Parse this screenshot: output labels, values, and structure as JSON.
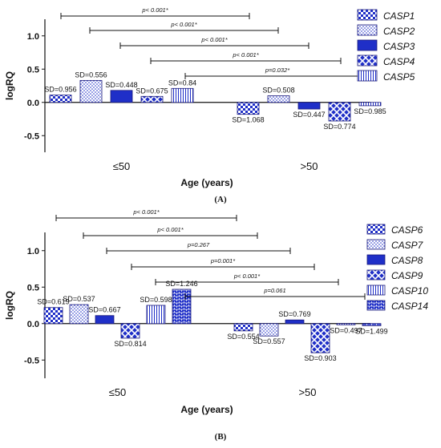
{
  "colors": {
    "fill": "#1f2fc8",
    "stroke": "#1a1a7a",
    "light": "#ffffff"
  },
  "chart_data": [
    {
      "type": "bar",
      "panel_label": "(A)",
      "xlabel": "Age (years)",
      "ylabel": "logRQ",
      "ylim": [
        -0.75,
        1.25
      ],
      "yticks": [
        -0.5,
        0.0,
        0.5,
        1.0
      ],
      "ytick_labels": [
        "-0.5",
        "0.0",
        "0.5",
        "1.0"
      ],
      "categories": [
        "≤50",
        ">50"
      ],
      "series": [
        {
          "name": "CASP1",
          "pattern": "checker",
          "values": [
            0.11,
            -0.18
          ],
          "sd_labels": [
            "SD=0.956",
            "SD=1.068"
          ]
        },
        {
          "name": "CASP2",
          "pattern": "dots",
          "values": [
            0.33,
            0.1
          ],
          "sd_labels": [
            "SD=0.556",
            "SD=0.508"
          ]
        },
        {
          "name": "CASP3",
          "pattern": "solid",
          "values": [
            0.18,
            -0.1
          ],
          "sd_labels": [
            "SD=0.448",
            "SD=0.447"
          ]
        },
        {
          "name": "CASP4",
          "pattern": "crosshatch",
          "values": [
            0.09,
            -0.28
          ],
          "sd_labels": [
            "SD=0.675",
            "SD=0.774"
          ]
        },
        {
          "name": "CASP5",
          "pattern": "vlines",
          "values": [
            0.21,
            -0.05
          ],
          "sd_labels": [
            "SD=0.84",
            "SD=0.985"
          ]
        }
      ],
      "comparisons": [
        {
          "label": "p< 0.001*"
        },
        {
          "label": "p< 0.001*"
        },
        {
          "label": "p< 0.001*"
        },
        {
          "label": "p< 0.001*"
        },
        {
          "label": "p=0.032*"
        }
      ]
    },
    {
      "type": "bar",
      "panel_label": "(B)",
      "xlabel": "Age (years)",
      "ylabel": "logRQ",
      "ylim": [
        -0.75,
        1.25
      ],
      "yticks": [
        -0.5,
        0.0,
        0.5,
        1.0
      ],
      "ytick_labels": [
        "-0.5",
        "0.0",
        "0.5",
        "1.0"
      ],
      "categories": [
        "≤50",
        ">50"
      ],
      "series": [
        {
          "name": "CASP6",
          "pattern": "checker",
          "values": [
            0.22,
            -0.1
          ],
          "sd_labels": [
            "SD=0.619",
            "SD=0.554"
          ]
        },
        {
          "name": "CASP7",
          "pattern": "dots",
          "values": [
            0.26,
            -0.17
          ],
          "sd_labels": [
            "SD=0.537",
            "SD=0.557"
          ]
        },
        {
          "name": "CASP8",
          "pattern": "solid",
          "values": [
            0.11,
            0.05
          ],
          "sd_labels": [
            "SD=0.667",
            "SD=0.769"
          ]
        },
        {
          "name": "CASP9",
          "pattern": "crosshatch",
          "values": [
            -0.2,
            -0.4
          ],
          "sd_labels": [
            "SD=0.814",
            "SD=0.903"
          ]
        },
        {
          "name": "CASP10",
          "pattern": "vlines",
          "values": [
            0.25,
            -0.01
          ],
          "sd_labels": [
            "SD=0.598",
            "SD=0.497"
          ]
        },
        {
          "name": "CASP14",
          "pattern": "bricks",
          "values": [
            0.47,
            -0.03
          ],
          "sd_labels": [
            "SD=1.246",
            "SD=1.499"
          ]
        }
      ],
      "comparisons": [
        {
          "label": "p< 0.001*"
        },
        {
          "label": "p< 0.001*"
        },
        {
          "label": "p=0.267"
        },
        {
          "label": "p=0.001*"
        },
        {
          "label": "p< 0.001*"
        },
        {
          "label": "p=0.061"
        }
      ]
    }
  ]
}
